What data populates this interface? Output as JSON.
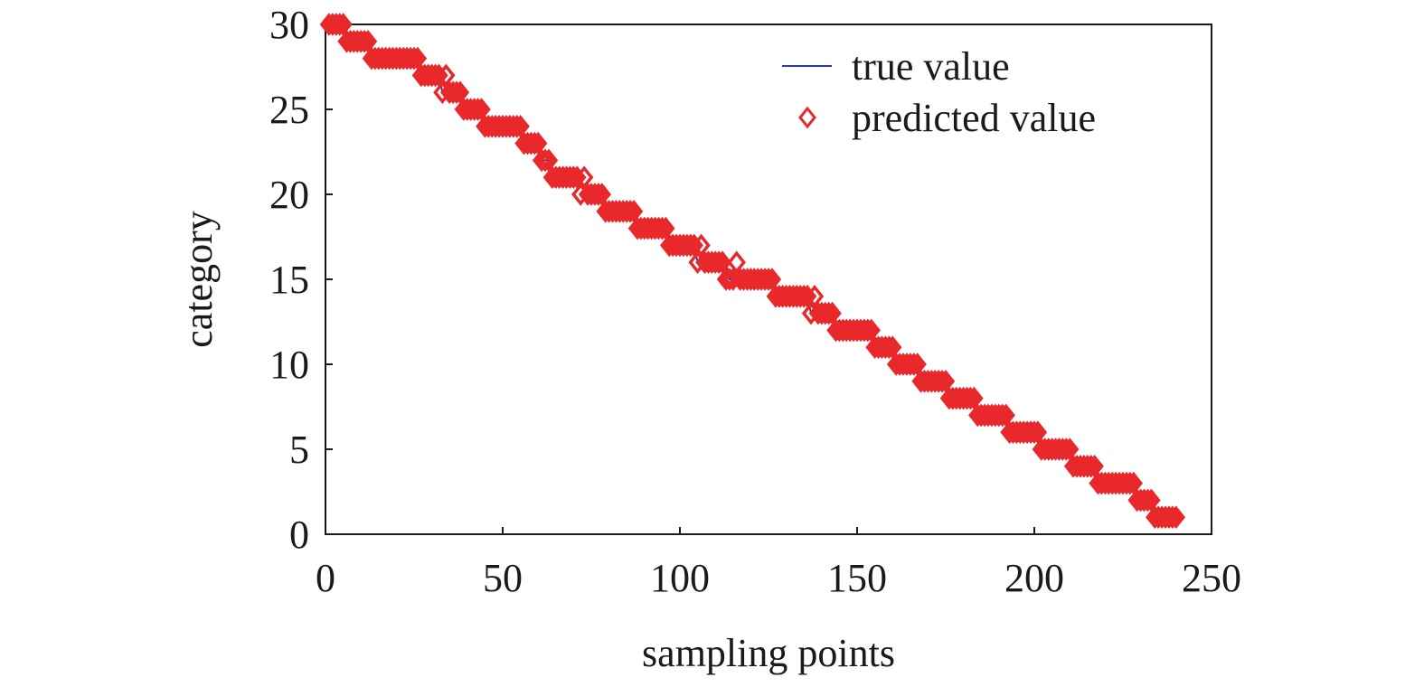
{
  "chart_data": {
    "type": "line",
    "xlabel": "sampling points",
    "ylabel": "category",
    "xlim": [
      0,
      250
    ],
    "xticks": [
      0,
      50,
      100,
      150,
      200,
      250
    ],
    "ylim": [
      0,
      30
    ],
    "yticks": [
      0,
      5,
      10,
      15,
      20,
      25,
      30
    ],
    "legend": "upper right",
    "x": [
      1,
      2,
      3,
      4,
      5,
      6,
      7,
      8,
      9,
      10,
      11,
      12,
      13,
      14,
      15,
      16,
      17,
      18,
      19,
      20,
      21,
      22,
      23,
      24,
      25,
      26,
      27,
      28,
      29,
      30,
      31,
      32,
      33,
      34,
      35,
      36,
      37,
      38,
      39,
      40,
      41,
      42,
      43,
      44,
      45,
      46,
      47,
      48,
      49,
      50,
      51,
      52,
      53,
      54,
      55,
      56,
      57,
      58,
      59,
      60,
      61,
      62,
      63,
      64,
      65,
      66,
      67,
      68,
      69,
      70,
      71,
      72,
      73,
      74,
      75,
      76,
      77,
      78,
      79,
      80,
      81,
      82,
      83,
      84,
      85,
      86,
      87,
      88,
      89,
      90,
      91,
      92,
      93,
      94,
      95,
      96,
      97,
      98,
      99,
      100,
      101,
      102,
      103,
      104,
      105,
      106,
      107,
      108,
      109,
      110,
      111,
      112,
      113,
      114,
      115,
      116,
      117,
      118,
      119,
      120,
      121,
      122,
      123,
      124,
      125,
      126,
      127,
      128,
      129,
      130,
      131,
      132,
      133,
      134,
      135,
      136,
      137,
      138,
      139,
      140,
      141,
      142,
      143,
      144,
      145,
      146,
      147,
      148,
      149,
      150,
      151,
      152,
      153,
      154,
      155,
      156,
      157,
      158,
      159,
      160,
      161,
      162,
      163,
      164,
      165,
      166,
      167,
      168,
      169,
      170,
      171,
      172,
      173,
      174,
      175,
      176,
      177,
      178,
      179,
      180,
      181,
      182,
      183,
      184,
      185,
      186,
      187,
      188,
      189,
      190,
      191,
      192,
      193,
      194,
      195,
      196,
      197,
      198,
      199,
      200,
      201,
      202,
      203,
      204,
      205,
      206,
      207,
      208,
      209,
      210,
      211,
      212,
      213,
      214,
      215,
      216,
      217,
      218,
      219,
      220,
      221,
      222,
      223,
      224,
      225,
      226,
      227,
      228,
      229,
      230,
      231,
      232,
      233,
      234,
      235,
      236,
      237,
      238,
      239,
      240
    ],
    "series": [
      {
        "name": "true value",
        "color": "#2b3a9a",
        "mode": "line",
        "values": [
          30,
          30,
          30,
          30,
          30,
          29,
          29,
          29,
          29,
          29,
          29,
          29,
          28,
          28,
          28,
          28,
          28,
          28,
          28,
          28,
          28,
          28,
          28,
          28,
          28,
          28,
          27,
          27,
          27,
          27,
          27,
          27,
          26,
          26,
          26,
          26,
          26,
          26,
          25,
          25,
          25,
          25,
          25,
          25,
          24,
          24,
          24,
          24,
          24,
          24,
          24,
          24,
          24,
          24,
          24,
          23,
          23,
          23,
          23,
          23,
          22,
          22,
          22,
          21,
          21,
          21,
          21,
          21,
          21,
          21,
          21,
          21,
          20,
          20,
          20,
          20,
          20,
          20,
          19,
          19,
          19,
          19,
          19,
          19,
          19,
          19,
          19,
          18,
          18,
          18,
          18,
          18,
          18,
          18,
          18,
          18,
          17,
          17,
          17,
          17,
          17,
          17,
          17,
          17,
          16,
          16,
          16,
          16,
          16,
          16,
          16,
          16,
          16,
          15,
          15,
          15,
          15,
          15,
          15,
          15,
          15,
          15,
          15,
          15,
          15,
          15,
          14,
          14,
          14,
          14,
          14,
          14,
          14,
          14,
          14,
          14,
          13,
          13,
          13,
          13,
          13,
          13,
          13,
          12,
          12,
          12,
          12,
          12,
          12,
          12,
          12,
          12,
          12,
          12,
          11,
          11,
          11,
          11,
          11,
          11,
          10,
          10,
          10,
          10,
          10,
          10,
          10,
          9,
          9,
          9,
          9,
          9,
          9,
          9,
          9,
          8,
          8,
          8,
          8,
          8,
          8,
          8,
          8,
          7,
          7,
          7,
          7,
          7,
          7,
          7,
          7,
          7,
          6,
          6,
          6,
          6,
          6,
          6,
          6,
          6,
          6,
          5,
          5,
          5,
          5,
          5,
          5,
          5,
          5,
          5,
          4,
          4,
          4,
          4,
          4,
          4,
          4,
          3,
          3,
          3,
          3,
          3,
          3,
          3,
          3,
          3,
          3,
          3,
          2,
          2,
          2,
          2,
          2,
          1,
          1,
          1,
          1,
          1,
          1,
          1
        ]
      },
      {
        "name": "predicted value",
        "color": "#e8282b",
        "mode": "markers",
        "values": [
          30,
          30,
          30,
          30,
          30,
          29,
          29,
          29,
          29,
          29,
          29,
          29,
          28,
          28,
          28,
          28,
          28,
          28,
          28,
          28,
          28,
          28,
          28,
          28,
          28,
          28,
          27,
          27,
          27,
          27,
          27,
          27,
          26,
          27,
          26,
          26,
          26,
          26,
          25,
          25,
          25,
          25,
          25,
          25,
          24,
          24,
          24,
          24,
          24,
          24,
          24,
          24,
          24,
          24,
          24,
          23,
          23,
          23,
          23,
          23,
          22,
          22,
          22,
          21,
          21,
          21,
          21,
          21,
          21,
          21,
          21,
          20,
          21,
          20,
          20,
          20,
          20,
          20,
          19,
          19,
          19,
          19,
          19,
          19,
          19,
          19,
          19,
          18,
          18,
          18,
          18,
          18,
          18,
          18,
          18,
          18,
          17,
          17,
          17,
          17,
          17,
          17,
          17,
          17,
          16,
          17,
          16,
          16,
          16,
          16,
          16,
          16,
          15,
          15,
          15,
          16,
          15,
          15,
          15,
          15,
          15,
          15,
          15,
          15,
          15,
          15,
          14,
          14,
          14,
          14,
          14,
          14,
          14,
          14,
          14,
          14,
          13,
          14,
          13,
          13,
          13,
          13,
          13,
          12,
          12,
          12,
          12,
          12,
          12,
          12,
          12,
          12,
          12,
          12,
          11,
          11,
          11,
          11,
          11,
          11,
          10,
          10,
          10,
          10,
          10,
          10,
          10,
          9,
          9,
          9,
          9,
          9,
          9,
          9,
          9,
          8,
          8,
          8,
          8,
          8,
          8,
          8,
          8,
          7,
          7,
          7,
          7,
          7,
          7,
          7,
          7,
          7,
          6,
          6,
          6,
          6,
          6,
          6,
          6,
          6,
          6,
          5,
          5,
          5,
          5,
          5,
          5,
          5,
          5,
          5,
          4,
          4,
          4,
          4,
          4,
          4,
          4,
          3,
          3,
          3,
          3,
          3,
          3,
          3,
          3,
          3,
          3,
          3,
          2,
          2,
          2,
          2,
          2,
          1,
          1,
          1,
          1,
          1,
          1,
          1
        ]
      }
    ]
  }
}
